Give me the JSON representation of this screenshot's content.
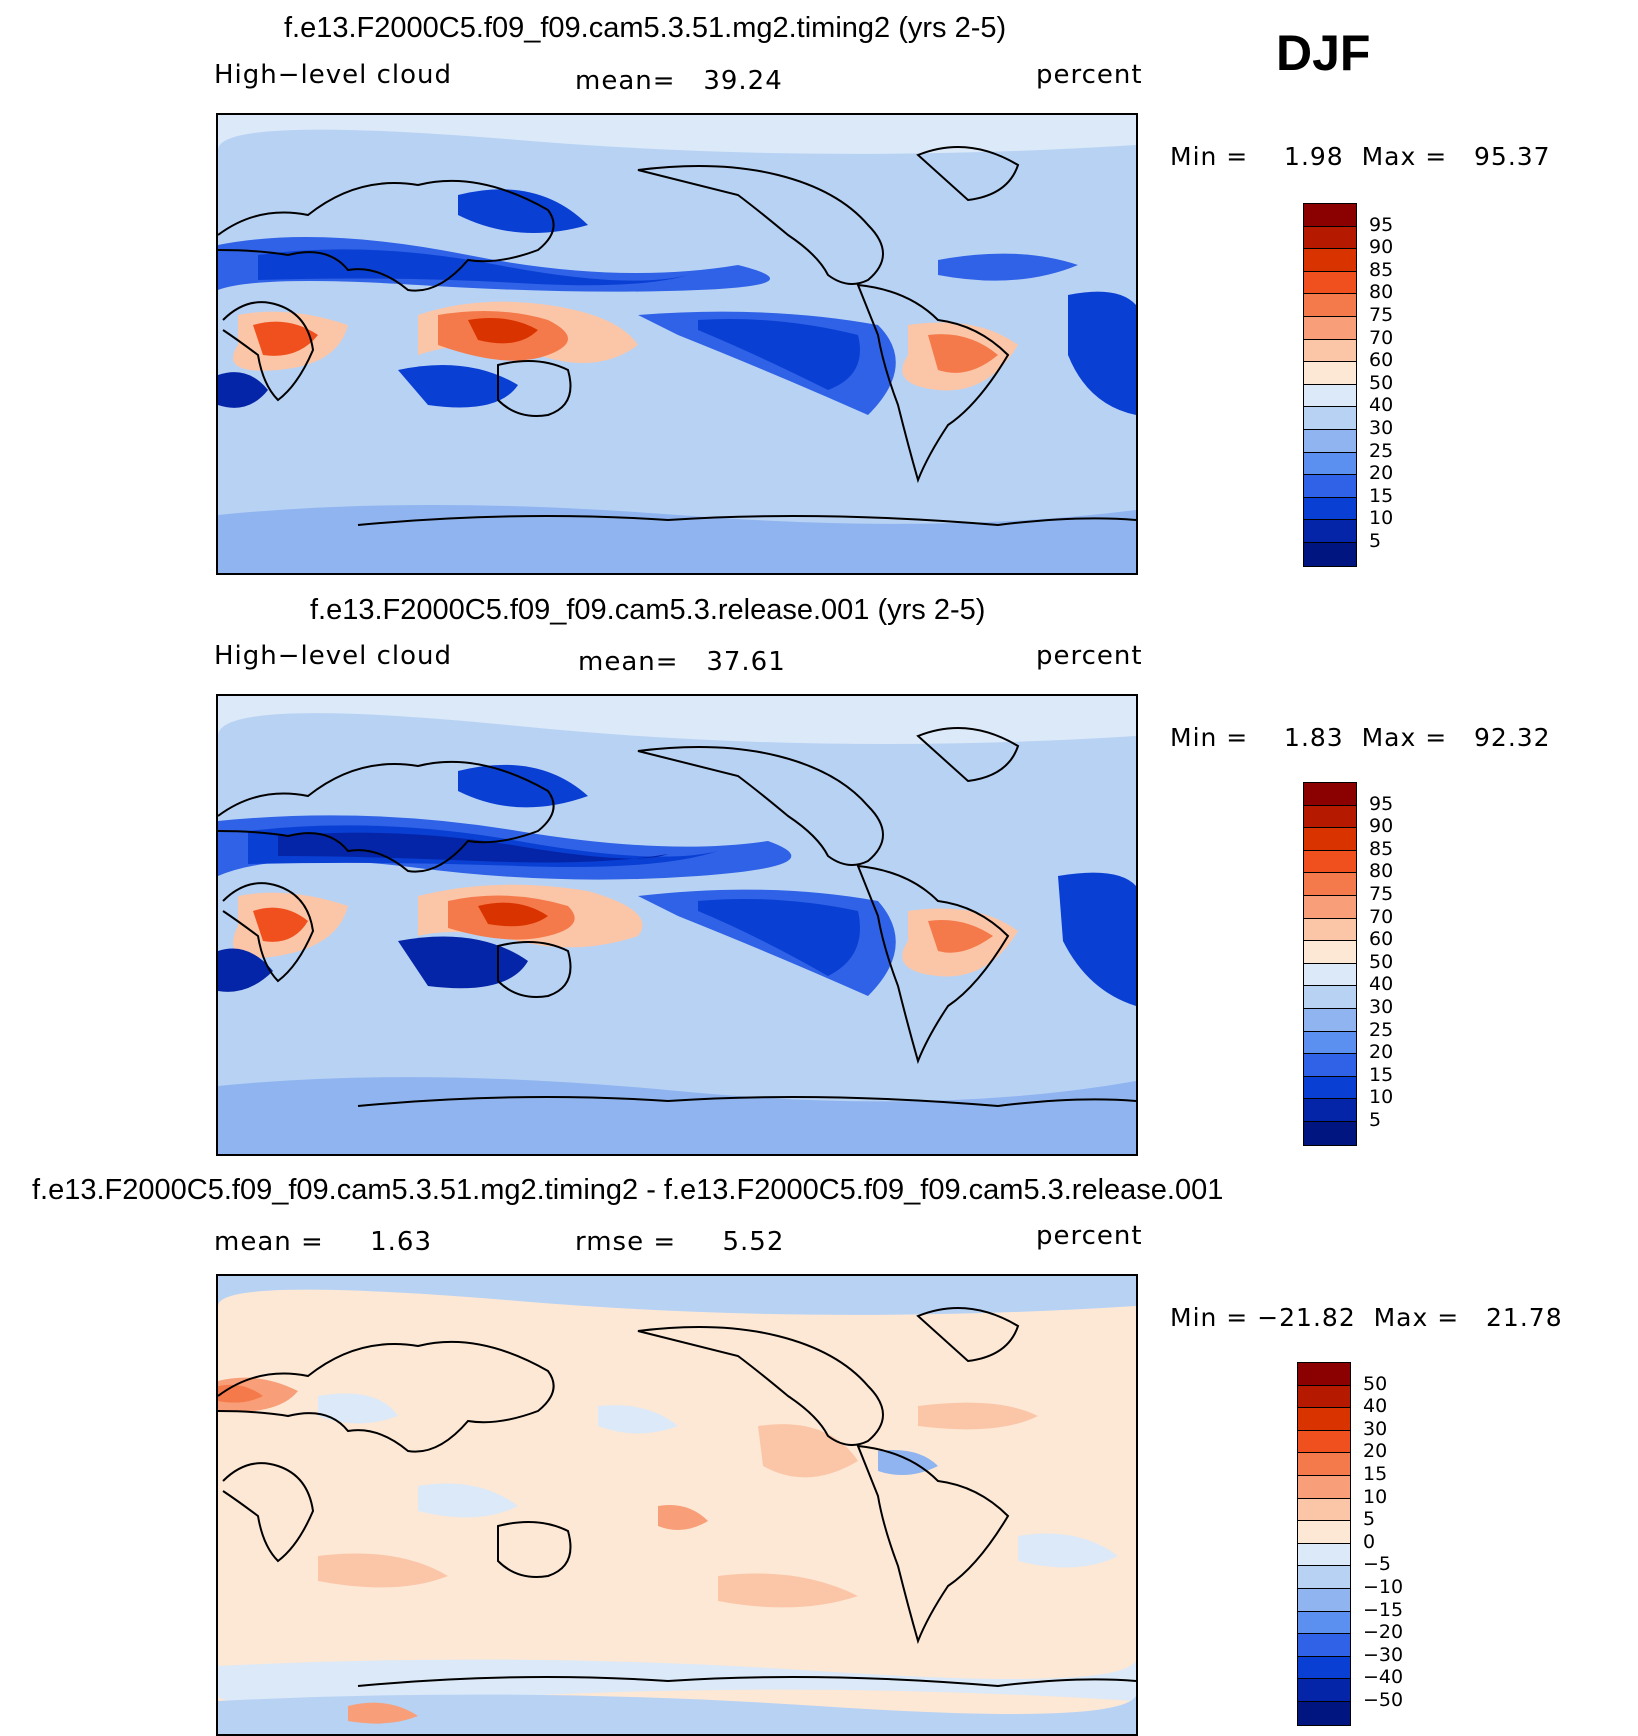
{
  "season": "DJF",
  "panels": [
    {
      "title": "f.e13.F2000C5.f09_f09.cam5.3.51.mg2.timing2 (yrs 2-5)",
      "left_label": "High−level cloud",
      "center_label": "mean=   39.24",
      "right_label": "percent",
      "minmax": "Min =    1.98  Max =   95.37",
      "colorbar_labels": [
        "95",
        "90",
        "85",
        "80",
        "75",
        "70",
        "60",
        "50",
        "40",
        "30",
        "25",
        "20",
        "15",
        "10",
        "5"
      ]
    },
    {
      "title": "f.e13.F2000C5.f09_f09.cam5.3.release.001 (yrs 2-5)",
      "left_label": "High−level cloud",
      "center_label": "mean=   37.61",
      "right_label": "percent",
      "minmax": "Min =    1.83  Max =   92.32",
      "colorbar_labels": [
        "95",
        "90",
        "85",
        "80",
        "75",
        "70",
        "60",
        "50",
        "40",
        "30",
        "25",
        "20",
        "15",
        "10",
        "5"
      ]
    },
    {
      "title": "f.e13.F2000C5.f09_f09.cam5.3.51.mg2.timing2 - f.e13.F2000C5.f09_f09.cam5.3.release.001",
      "left_label": "mean =     1.63",
      "center_label": "rmse =     5.52",
      "right_label": "percent",
      "minmax": "Min = −21.82  Max =   21.78",
      "colorbar_labels": [
        "50",
        "40",
        "30",
        "20",
        "15",
        "10",
        "5",
        "0",
        "−5",
        "−10",
        "−15",
        "−20",
        "−30",
        "−40",
        "−50"
      ]
    }
  ],
  "colors": {
    "scale": [
      "#8b0000",
      "#b51a00",
      "#d93400",
      "#f0501e",
      "#f57a4b",
      "#f89e78",
      "#fbc6a8",
      "#fde8d5",
      "#dbe9f8",
      "#b8d2f4",
      "#8fb4f0",
      "#5b8ff0",
      "#2f62e6",
      "#0a3fd4",
      "#0525a8",
      "#001580"
    ],
    "map_background": "#b8d2f4",
    "land_outline": "#000000"
  }
}
